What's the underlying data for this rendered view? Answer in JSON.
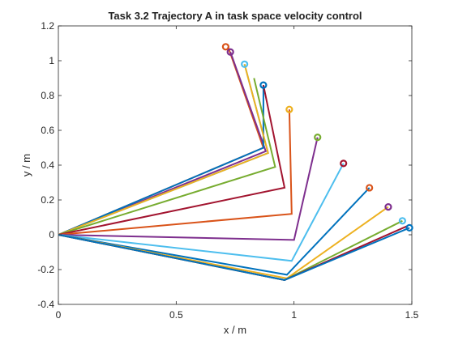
{
  "chart_data": {
    "type": "line",
    "title": "Task 3.2 Trajectory A in task space velocity control",
    "xlabel": "x / m",
    "ylabel": "y / m",
    "xlim": [
      0,
      1.5
    ],
    "ylim": [
      -0.4,
      1.2
    ],
    "xticks": [
      "0",
      "0.5",
      "1",
      "1.5"
    ],
    "yticks": [
      "-0.4",
      "-0.2",
      "0",
      "0.2",
      "0.4",
      "0.6",
      "0.8",
      "1",
      "1.2"
    ],
    "grid": false,
    "legend": "none",
    "series": [
      {
        "color": "#D95319",
        "points": [
          [
            0,
            0
          ],
          [
            0.87,
            0.5
          ],
          [
            0.72,
            1.08
          ]
        ]
      },
      {
        "color": "#7E2F8E",
        "points": [
          [
            0,
            0
          ],
          [
            0.88,
            0.48
          ],
          [
            0.73,
            1.05
          ]
        ]
      },
      {
        "color": "#4DBEEE",
        "points": [
          [
            0,
            0
          ],
          [
            0.89,
            0.47
          ],
          [
            0.79,
            0.98
          ]
        ]
      },
      {
        "color": "#0072BD",
        "points": [
          [
            0,
            0
          ],
          [
            0.87,
            0.5
          ],
          [
            0.87,
            0.86
          ]
        ]
      },
      {
        "color": "#EDB120",
        "points": [
          [
            0,
            0
          ],
          [
            0.89,
            0.47
          ],
          [
            0.79,
            0.98
          ]
        ]
      },
      {
        "color": "#77AC30",
        "points": [
          [
            0,
            0
          ],
          [
            0.92,
            0.39
          ],
          [
            0.83,
            0.9
          ]
        ]
      },
      {
        "color": "#A2142F",
        "points": [
          [
            0,
            0
          ],
          [
            0.96,
            0.27
          ],
          [
            0.87,
            0.86
          ]
        ]
      },
      {
        "color": "#D95319",
        "points": [
          [
            0,
            0
          ],
          [
            0.99,
            0.12
          ],
          [
            0.98,
            0.72
          ]
        ]
      },
      {
        "color": "#7E2F8E",
        "points": [
          [
            0,
            0
          ],
          [
            1.0,
            -0.03
          ],
          [
            1.1,
            0.56
          ]
        ]
      },
      {
        "color": "#4DBEEE",
        "points": [
          [
            0,
            0
          ],
          [
            0.99,
            -0.15
          ],
          [
            1.21,
            0.41
          ]
        ]
      },
      {
        "color": "#0072BD",
        "points": [
          [
            0,
            0
          ],
          [
            0.97,
            -0.23
          ],
          [
            1.32,
            0.27
          ]
        ]
      },
      {
        "color": "#EDB120",
        "points": [
          [
            0,
            0
          ],
          [
            0.97,
            -0.25
          ],
          [
            1.4,
            0.16
          ]
        ]
      },
      {
        "color": "#77AC30",
        "points": [
          [
            0,
            0
          ],
          [
            0.96,
            -0.26
          ],
          [
            1.46,
            0.08
          ]
        ]
      },
      {
        "color": "#A2142F",
        "points": [
          [
            0,
            0
          ],
          [
            0.96,
            -0.26
          ],
          [
            1.48,
            0.05
          ]
        ]
      },
      {
        "color": "#0072BD",
        "points": [
          [
            0,
            0
          ],
          [
            0.96,
            -0.26
          ],
          [
            1.49,
            0.04
          ]
        ]
      }
    ],
    "end_markers": [
      {
        "color": "#D95319",
        "x": 0.71,
        "y": 1.08
      },
      {
        "color": "#7E2F8E",
        "x": 0.73,
        "y": 1.05
      },
      {
        "color": "#4DBEEE",
        "x": 0.79,
        "y": 0.98
      },
      {
        "color": "#0072BD",
        "x": 0.87,
        "y": 0.86
      },
      {
        "color": "#EDB120",
        "x": 0.98,
        "y": 0.72
      },
      {
        "color": "#77AC30",
        "x": 1.1,
        "y": 0.56
      },
      {
        "color": "#A2142F",
        "x": 1.21,
        "y": 0.41
      },
      {
        "color": "#D95319",
        "x": 1.32,
        "y": 0.27
      },
      {
        "color": "#7E2F8E",
        "x": 1.4,
        "y": 0.16
      },
      {
        "color": "#4DBEEE",
        "x": 1.46,
        "y": 0.08
      },
      {
        "color": "#0072BD",
        "x": 1.49,
        "y": 0.04
      }
    ]
  }
}
